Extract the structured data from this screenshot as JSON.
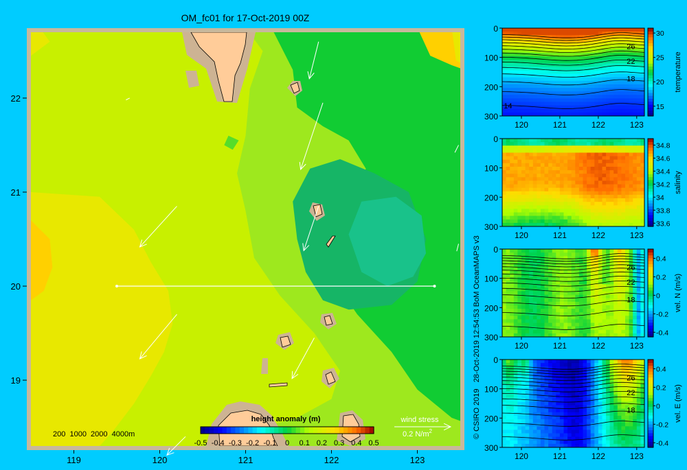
{
  "title": "OM_fc01 for 17-Oct-2019 00Z",
  "credit": "© CSIRO 2019   28-Oct-2019 12:54:53 BoM OceanMAPS v3",
  "colors": {
    "background": "#00ccff",
    "land": "#ffcc99",
    "shelf": "#cdb393",
    "frame": "#c8b89c"
  },
  "map": {
    "x_ticks": [
      "119",
      "120",
      "121",
      "122",
      "123"
    ],
    "y_ticks": [
      "19",
      "20",
      "21",
      "22"
    ],
    "depth_legend": "200  1000  2000  4000m",
    "colorbar_title": "height anomaly (m)",
    "colorbar_ticks": [
      "-0.5",
      "-0.4",
      "-0.3",
      "-0.2",
      "-0.1",
      "0",
      "0.1",
      "0.2",
      "0.3",
      "0.4",
      "0.5"
    ],
    "wind_label": "wind stress",
    "wind_scale": "0.2 N/m",
    "wind_scale_sup": "2",
    "section_line": {
      "lat": 20,
      "lon_start": 119.5,
      "lon_end": 123.2
    }
  },
  "chart_data": [
    {
      "type": "heatmap",
      "title": "",
      "field": "height anomaly (m)",
      "xlim": [
        118.5,
        123.5
      ],
      "ylim": [
        18.3,
        22.7
      ],
      "x_ticks": [
        119,
        120,
        121,
        122,
        123
      ],
      "y_ticks": [
        19,
        20,
        21,
        22
      ],
      "colorbar_range": [
        -0.5,
        0.5
      ],
      "contours": [
        {
          "level": 0.15,
          "name": "east",
          "points": [
            [
              121.0,
              22.75
            ],
            [
              121.2,
              22.5
            ],
            [
              121.05,
              22.1
            ],
            [
              121.0,
              21.6
            ],
            [
              120.9,
              21.2
            ],
            [
              121.0,
              20.8
            ],
            [
              121.1,
              20.3
            ],
            [
              121.4,
              19.9
            ],
            [
              121.8,
              19.5
            ],
            [
              122.1,
              19.1
            ],
            [
              122.0,
              18.8
            ],
            [
              121.6,
              18.6
            ],
            [
              121.2,
              18.5
            ],
            [
              120.8,
              18.45
            ],
            [
              120.5,
              18.3
            ],
            [
              123.55,
              18.3
            ],
            [
              123.55,
              22.75
            ]
          ]
        },
        {
          "level": 0.1,
          "name": "island",
          "points": [
            [
              120.8,
              21.6
            ],
            [
              120.92,
              21.55
            ],
            [
              120.85,
              21.45
            ],
            [
              120.75,
              21.5
            ]
          ]
        },
        {
          "level": 0.05,
          "name": "east",
          "points": [
            [
              121.3,
              22.75
            ],
            [
              121.55,
              22.3
            ],
            [
              121.6,
              21.9
            ],
            [
              121.9,
              21.7
            ],
            [
              122.2,
              21.55
            ],
            [
              122.4,
              21.25
            ],
            [
              122.3,
              20.9
            ],
            [
              122.1,
              20.5
            ],
            [
              122.0,
              20.1
            ],
            [
              122.3,
              19.7
            ],
            [
              122.7,
              19.3
            ],
            [
              123.0,
              18.9
            ],
            [
              123.4,
              18.6
            ],
            [
              123.55,
              18.55
            ],
            [
              123.55,
              22.75
            ]
          ]
        },
        {
          "level": 0.0,
          "name": "eddy",
          "points": [
            [
              121.55,
              20.9
            ],
            [
              121.75,
              21.25
            ],
            [
              122.1,
              21.35
            ],
            [
              122.5,
              21.2
            ],
            [
              122.9,
              21.0
            ],
            [
              123.1,
              20.5
            ],
            [
              123.0,
              20.05
            ],
            [
              122.7,
              19.8
            ],
            [
              122.2,
              19.75
            ],
            [
              121.9,
              19.85
            ],
            [
              121.7,
              20.15
            ],
            [
              121.6,
              20.5
            ]
          ]
        },
        {
          "level": -0.05,
          "name": "eddy-core",
          "points": [
            [
              122.2,
              20.55
            ],
            [
              122.35,
              20.9
            ],
            [
              122.75,
              20.95
            ],
            [
              123.05,
              20.75
            ],
            [
              123.1,
              20.35
            ],
            [
              122.95,
              20.1
            ],
            [
              122.65,
              20.0
            ],
            [
              122.35,
              20.15
            ]
          ]
        },
        {
          "level": 0.25,
          "name": "west",
          "points": [
            [
              118.5,
              21.0
            ],
            [
              119.3,
              20.95
            ],
            [
              119.7,
              20.6
            ],
            [
              119.9,
              20.25
            ],
            [
              120.1,
              19.95
            ],
            [
              120.15,
              19.6
            ],
            [
              120.05,
              19.3
            ],
            [
              119.9,
              19.05
            ],
            [
              119.7,
              18.75
            ],
            [
              119.45,
              18.45
            ],
            [
              119.3,
              18.3
            ],
            [
              118.5,
              18.3
            ]
          ]
        },
        {
          "level": 0.3,
          "name": "west-core",
          "points": [
            [
              118.5,
              20.7
            ],
            [
              118.72,
              20.5
            ],
            [
              118.75,
              20.2
            ],
            [
              118.65,
              19.95
            ],
            [
              118.5,
              19.85
            ]
          ]
        },
        {
          "level": 0.25,
          "name": "north",
          "points": [
            [
              118.6,
              22.75
            ],
            [
              118.72,
              22.6
            ],
            [
              118.5,
              22.45
            ],
            [
              118.5,
              22.75
            ]
          ]
        },
        {
          "level": 0.3,
          "name": "northeast",
          "points": [
            [
              123.0,
              22.75
            ],
            [
              123.15,
              22.45
            ],
            [
              123.4,
              22.35
            ],
            [
              123.55,
              22.3
            ],
            [
              123.55,
              22.75
            ]
          ]
        },
        {
          "level": 0.25,
          "name": "east-edge",
          "points": [
            [
              123.4,
              22.75
            ],
            [
              123.45,
              22.4
            ],
            [
              123.55,
              22.35
            ],
            [
              123.55,
              22.75
            ]
          ]
        }
      ],
      "wind_stress": [
        {
          "lon": 121.85,
          "lat": 22.6,
          "u": -0.05,
          "v": -0.2
        },
        {
          "lon": 121.9,
          "lat": 21.95,
          "u": -0.12,
          "v": -0.36
        },
        {
          "lon": 120.2,
          "lat": 20.85,
          "u": -0.2,
          "v": -0.22
        },
        {
          "lon": 121.85,
          "lat": 20.85,
          "u": -0.08,
          "v": -0.24
        },
        {
          "lon": 120.2,
          "lat": 19.7,
          "u": -0.2,
          "v": -0.24
        },
        {
          "lon": 121.8,
          "lat": 19.45,
          "u": -0.12,
          "v": -0.22
        },
        {
          "lon": 120.3,
          "lat": 18.4,
          "u": -0.1,
          "v": -0.1
        },
        {
          "lon": 123.48,
          "lat": 21.5,
          "u": -0.02,
          "v": -0.04
        },
        {
          "lon": 123.48,
          "lat": 20.45,
          "u": -0.01,
          "v": -0.04
        },
        {
          "lon": 119.65,
          "lat": 22.0,
          "u": -0.02,
          "v": -0.01
        }
      ]
    },
    {
      "type": "heatmap",
      "variable": "temperature",
      "xlabel": "",
      "ylabel": "",
      "xlim": [
        119.5,
        123.2
      ],
      "ylim": [
        300,
        0
      ],
      "x_ticks": [
        120,
        121,
        122,
        123
      ],
      "y_ticks": [
        0,
        100,
        200,
        300
      ],
      "colorbar_ticks": [
        15,
        20,
        25,
        30
      ],
      "colorbar_range": [
        13,
        31
      ],
      "colorbar_label": "temperature",
      "contour_labels": [
        {
          "text": "26",
          "lon": 122.85,
          "depth": 62
        },
        {
          "text": "22",
          "lon": 122.85,
          "depth": 112
        },
        {
          "text": "18",
          "lon": 122.85,
          "depth": 172
        },
        {
          "text": "14",
          "lon": 119.65,
          "depth": 265
        }
      ]
    },
    {
      "type": "heatmap",
      "variable": "salinity",
      "xlim": [
        119.5,
        123.2
      ],
      "ylim": [
        300,
        0
      ],
      "x_ticks": [
        120,
        121,
        122,
        123
      ],
      "y_ticks": [
        0,
        100,
        200,
        300
      ],
      "colorbar_ticks": [
        33.6,
        33.8,
        34,
        34.2,
        34.4,
        34.6,
        34.8
      ],
      "colorbar_range": [
        33.55,
        34.9
      ],
      "colorbar_label": "salinity"
    },
    {
      "type": "heatmap",
      "variable": "vel. N (m/s)",
      "xlim": [
        119.5,
        123.2
      ],
      "ylim": [
        300,
        0
      ],
      "x_ticks": [
        120,
        121,
        122,
        123
      ],
      "y_ticks": [
        0,
        100,
        200,
        300
      ],
      "colorbar_ticks": [
        -0.4,
        -0.2,
        0,
        0.2,
        0.4
      ],
      "colorbar_range": [
        -0.45,
        0.5
      ],
      "colorbar_label": "vel. N (m/s)",
      "contour_labels": [
        {
          "text": "26",
          "lon": 122.85,
          "depth": 62
        },
        {
          "text": "22",
          "lon": 122.85,
          "depth": 112
        },
        {
          "text": "18",
          "lon": 122.85,
          "depth": 172
        }
      ]
    },
    {
      "type": "heatmap",
      "variable": "vel. E (m/s)",
      "xlim": [
        119.5,
        123.2
      ],
      "ylim": [
        300,
        0
      ],
      "x_ticks": [
        120,
        121,
        122,
        123
      ],
      "y_ticks": [
        0,
        100,
        200,
        300
      ],
      "colorbar_ticks": [
        -0.4,
        -0.2,
        0,
        0.2,
        0.4
      ],
      "colorbar_range": [
        -0.45,
        0.5
      ],
      "colorbar_label": "vel. E (m/s)",
      "contour_labels": [
        {
          "text": "26",
          "lon": 122.85,
          "depth": 62
        },
        {
          "text": "22",
          "lon": 122.85,
          "depth": 112
        },
        {
          "text": "18",
          "lon": 122.85,
          "depth": 172
        }
      ]
    }
  ]
}
